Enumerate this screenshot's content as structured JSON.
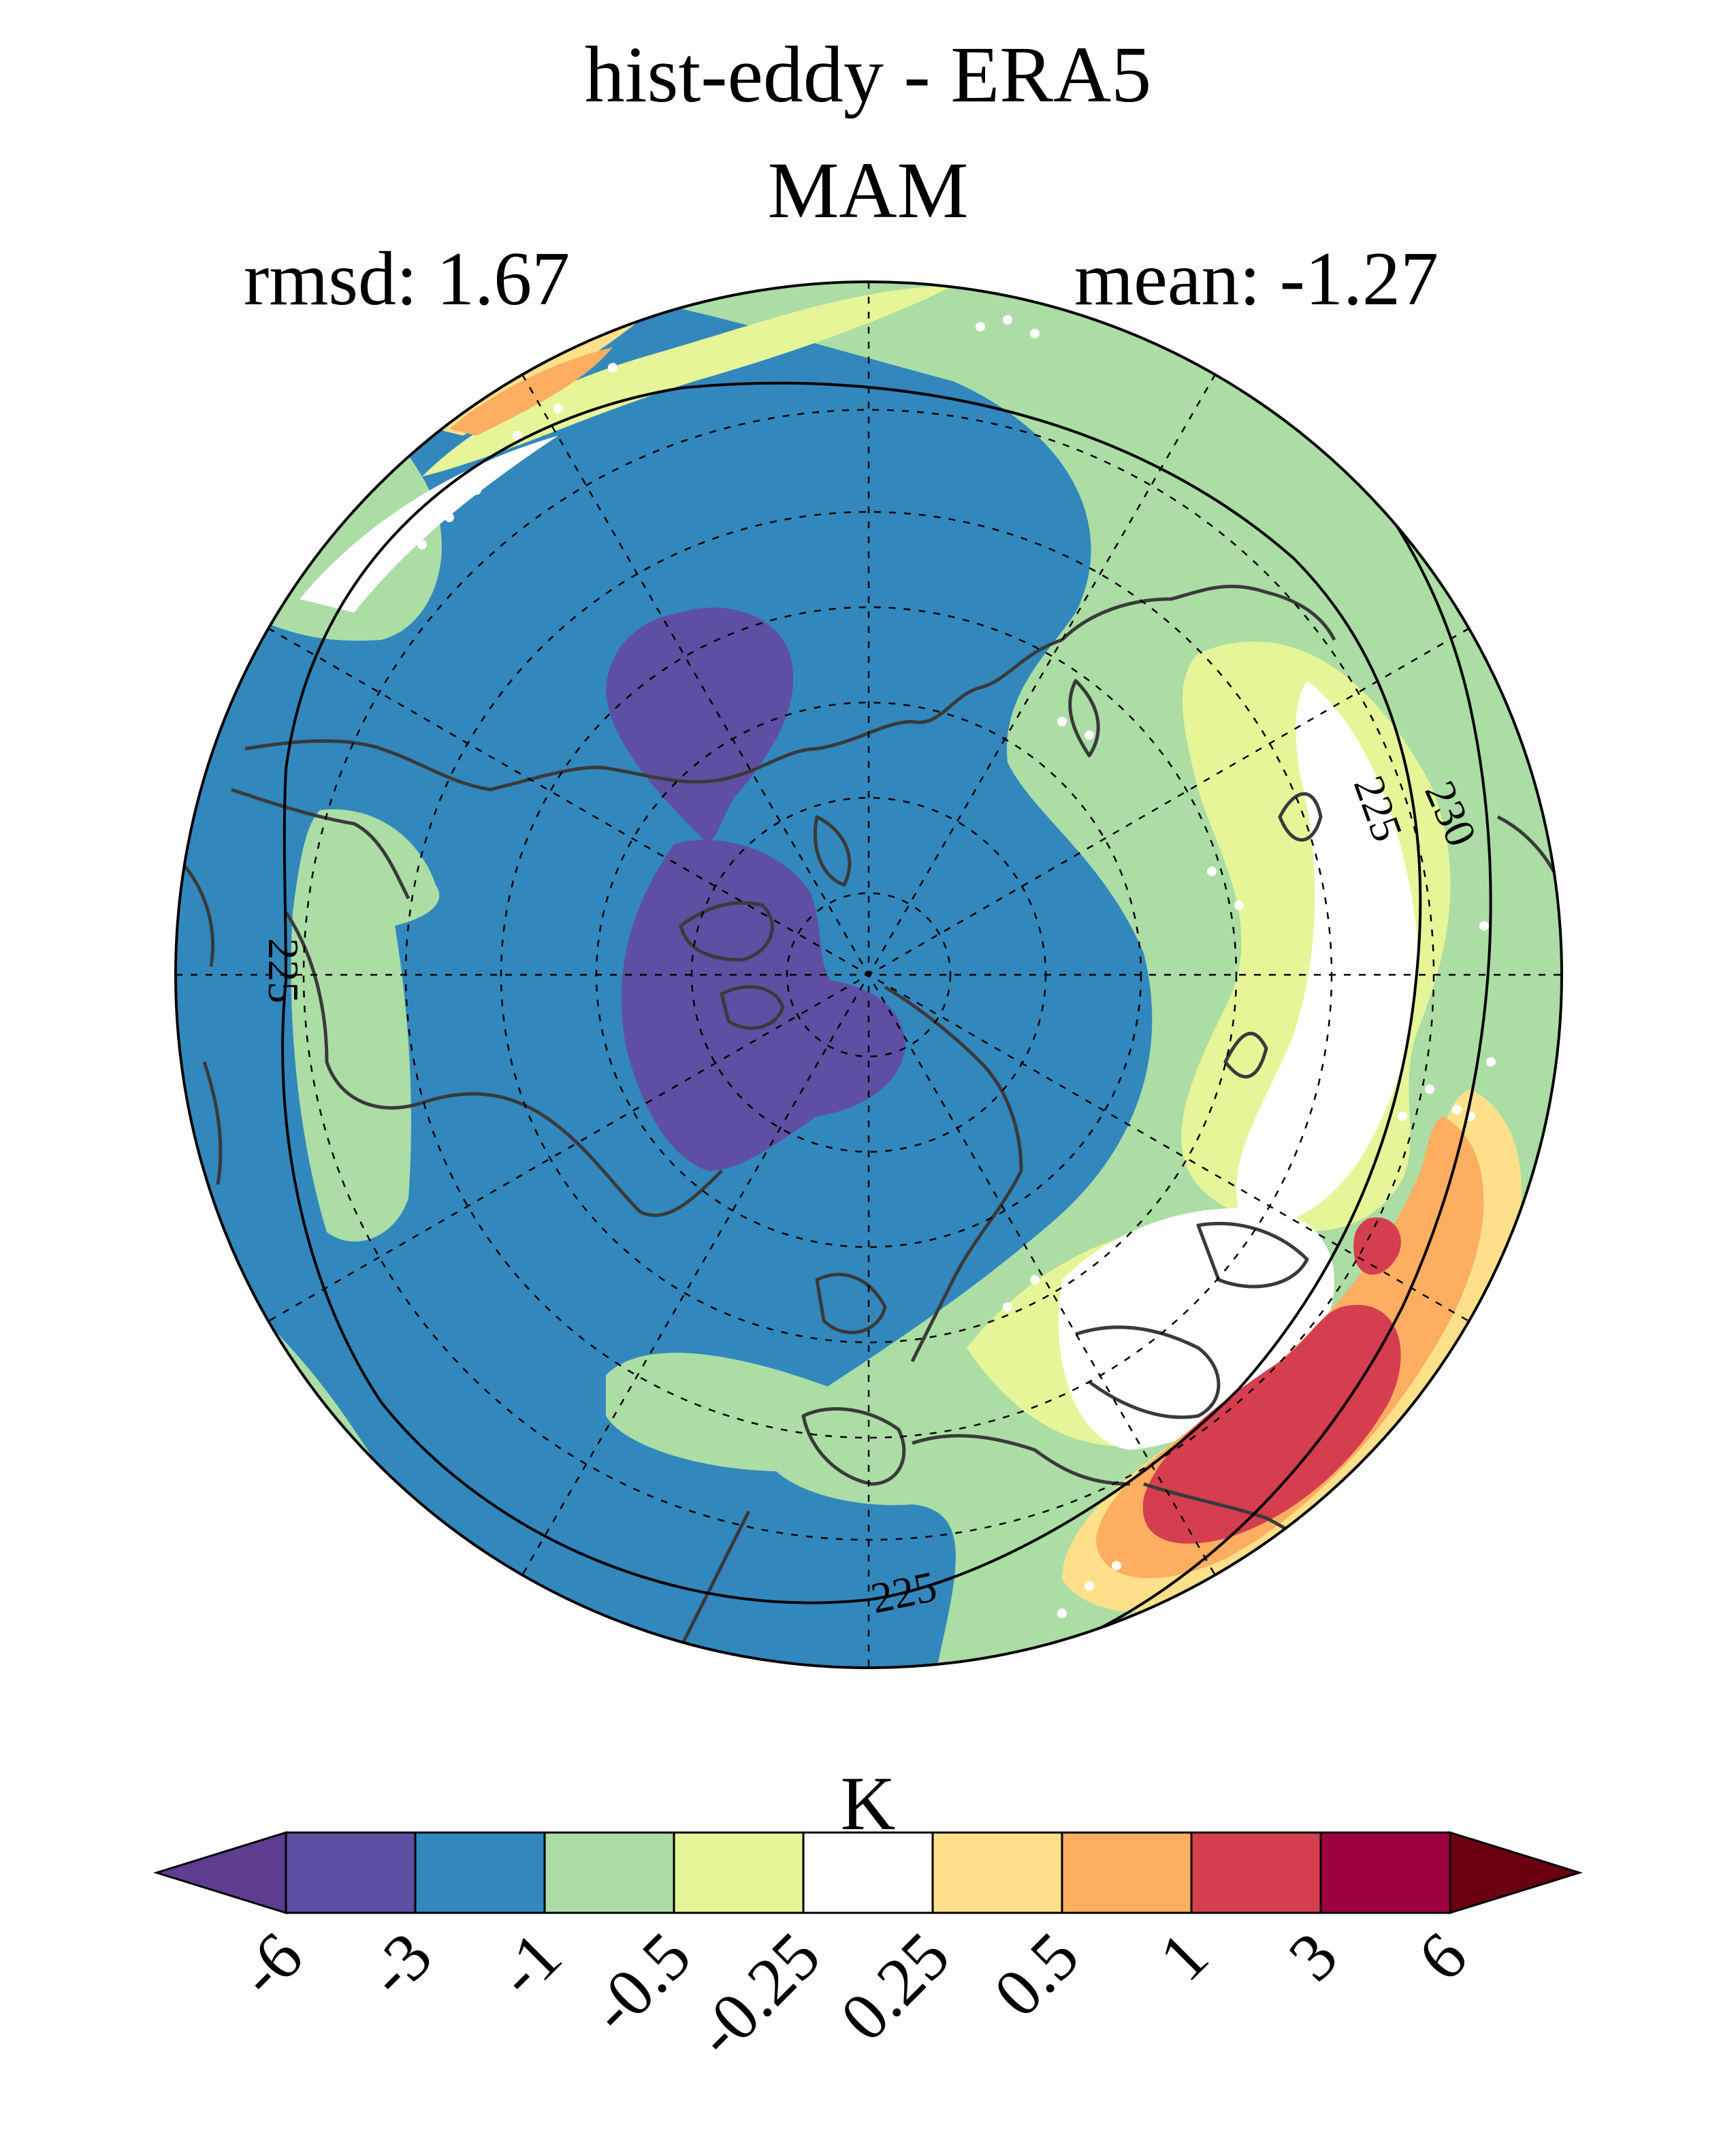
{
  "title": "hist-eddy - ERA5",
  "subtitle": "MAM",
  "stats": {
    "rmsd": "rmsd: 1.67",
    "mean": "mean: -1.27"
  },
  "contours": {
    "labels": [
      "225",
      "230",
      "225",
      "225"
    ]
  },
  "colorbar": {
    "units": "K",
    "ticks": [
      "-6",
      "-3",
      "-1",
      "-0.5",
      "-0.25",
      "0.25",
      "0.5",
      "1",
      "3",
      "6"
    ],
    "colors": [
      "#5e3c8f",
      "#5e4fa2",
      "#3288bd",
      "#abdda4",
      "#e6f598",
      "#ffffff",
      "#fee08b",
      "#fdae61",
      "#d53e4f",
      "#9e0142",
      "#6a0010"
    ]
  }
}
